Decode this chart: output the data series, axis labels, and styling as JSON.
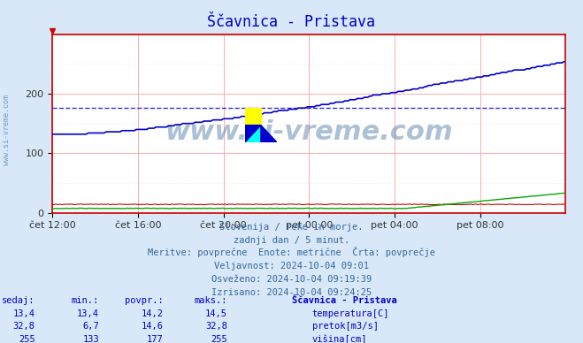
{
  "title": "Ščavnica - Pristava",
  "bg_color": "#d8e8f8",
  "plot_bg_color": "#ffffff",
  "x_labels": [
    "čet 12:00",
    "čet 16:00",
    "čet 20:00",
    "pet 00:00",
    "pet 04:00",
    "pet 08:00"
  ],
  "x_ticks_n": 289,
  "y_min": 0,
  "y_max": 300,
  "y_ticks": [
    0,
    100,
    200
  ],
  "avg_line_color": "#0000cc",
  "avg_line_value": 177,
  "grid_color_major": "#ffaaaa",
  "grid_color_minor": "#ffdddd",
  "temp_color": "#cc0000",
  "flow_color": "#00aa00",
  "height_color": "#0000cc",
  "watermark_text": "www.si-vreme.com",
  "info_line1": "Slovenija / reke in morje.",
  "info_line2": "zadnji dan / 5 minut.",
  "info_line3": "Meritve: povprečne  Enote: metrične  Črta: povprečje",
  "info_line4": "Veljavnost: 2024-10-04 09:01",
  "info_line5": "Osveženo: 2024-10-04 09:19:39",
  "info_line6": "Izrisano: 2024-10-04 09:24:25",
  "table_headers": [
    "sedaj:",
    "min.:",
    "povpr.:",
    "maks.:",
    "Ščavnica - Pristava"
  ],
  "table_row1": [
    "13,4",
    "13,4",
    "14,2",
    "14,5",
    "temperatura[C]"
  ],
  "table_row2": [
    "32,8",
    "6,7",
    "14,6",
    "32,8",
    "pretok[m3/s]"
  ],
  "table_row3": [
    "255",
    "133",
    "177",
    "255",
    "višina[cm]"
  ],
  "n_points": 289
}
